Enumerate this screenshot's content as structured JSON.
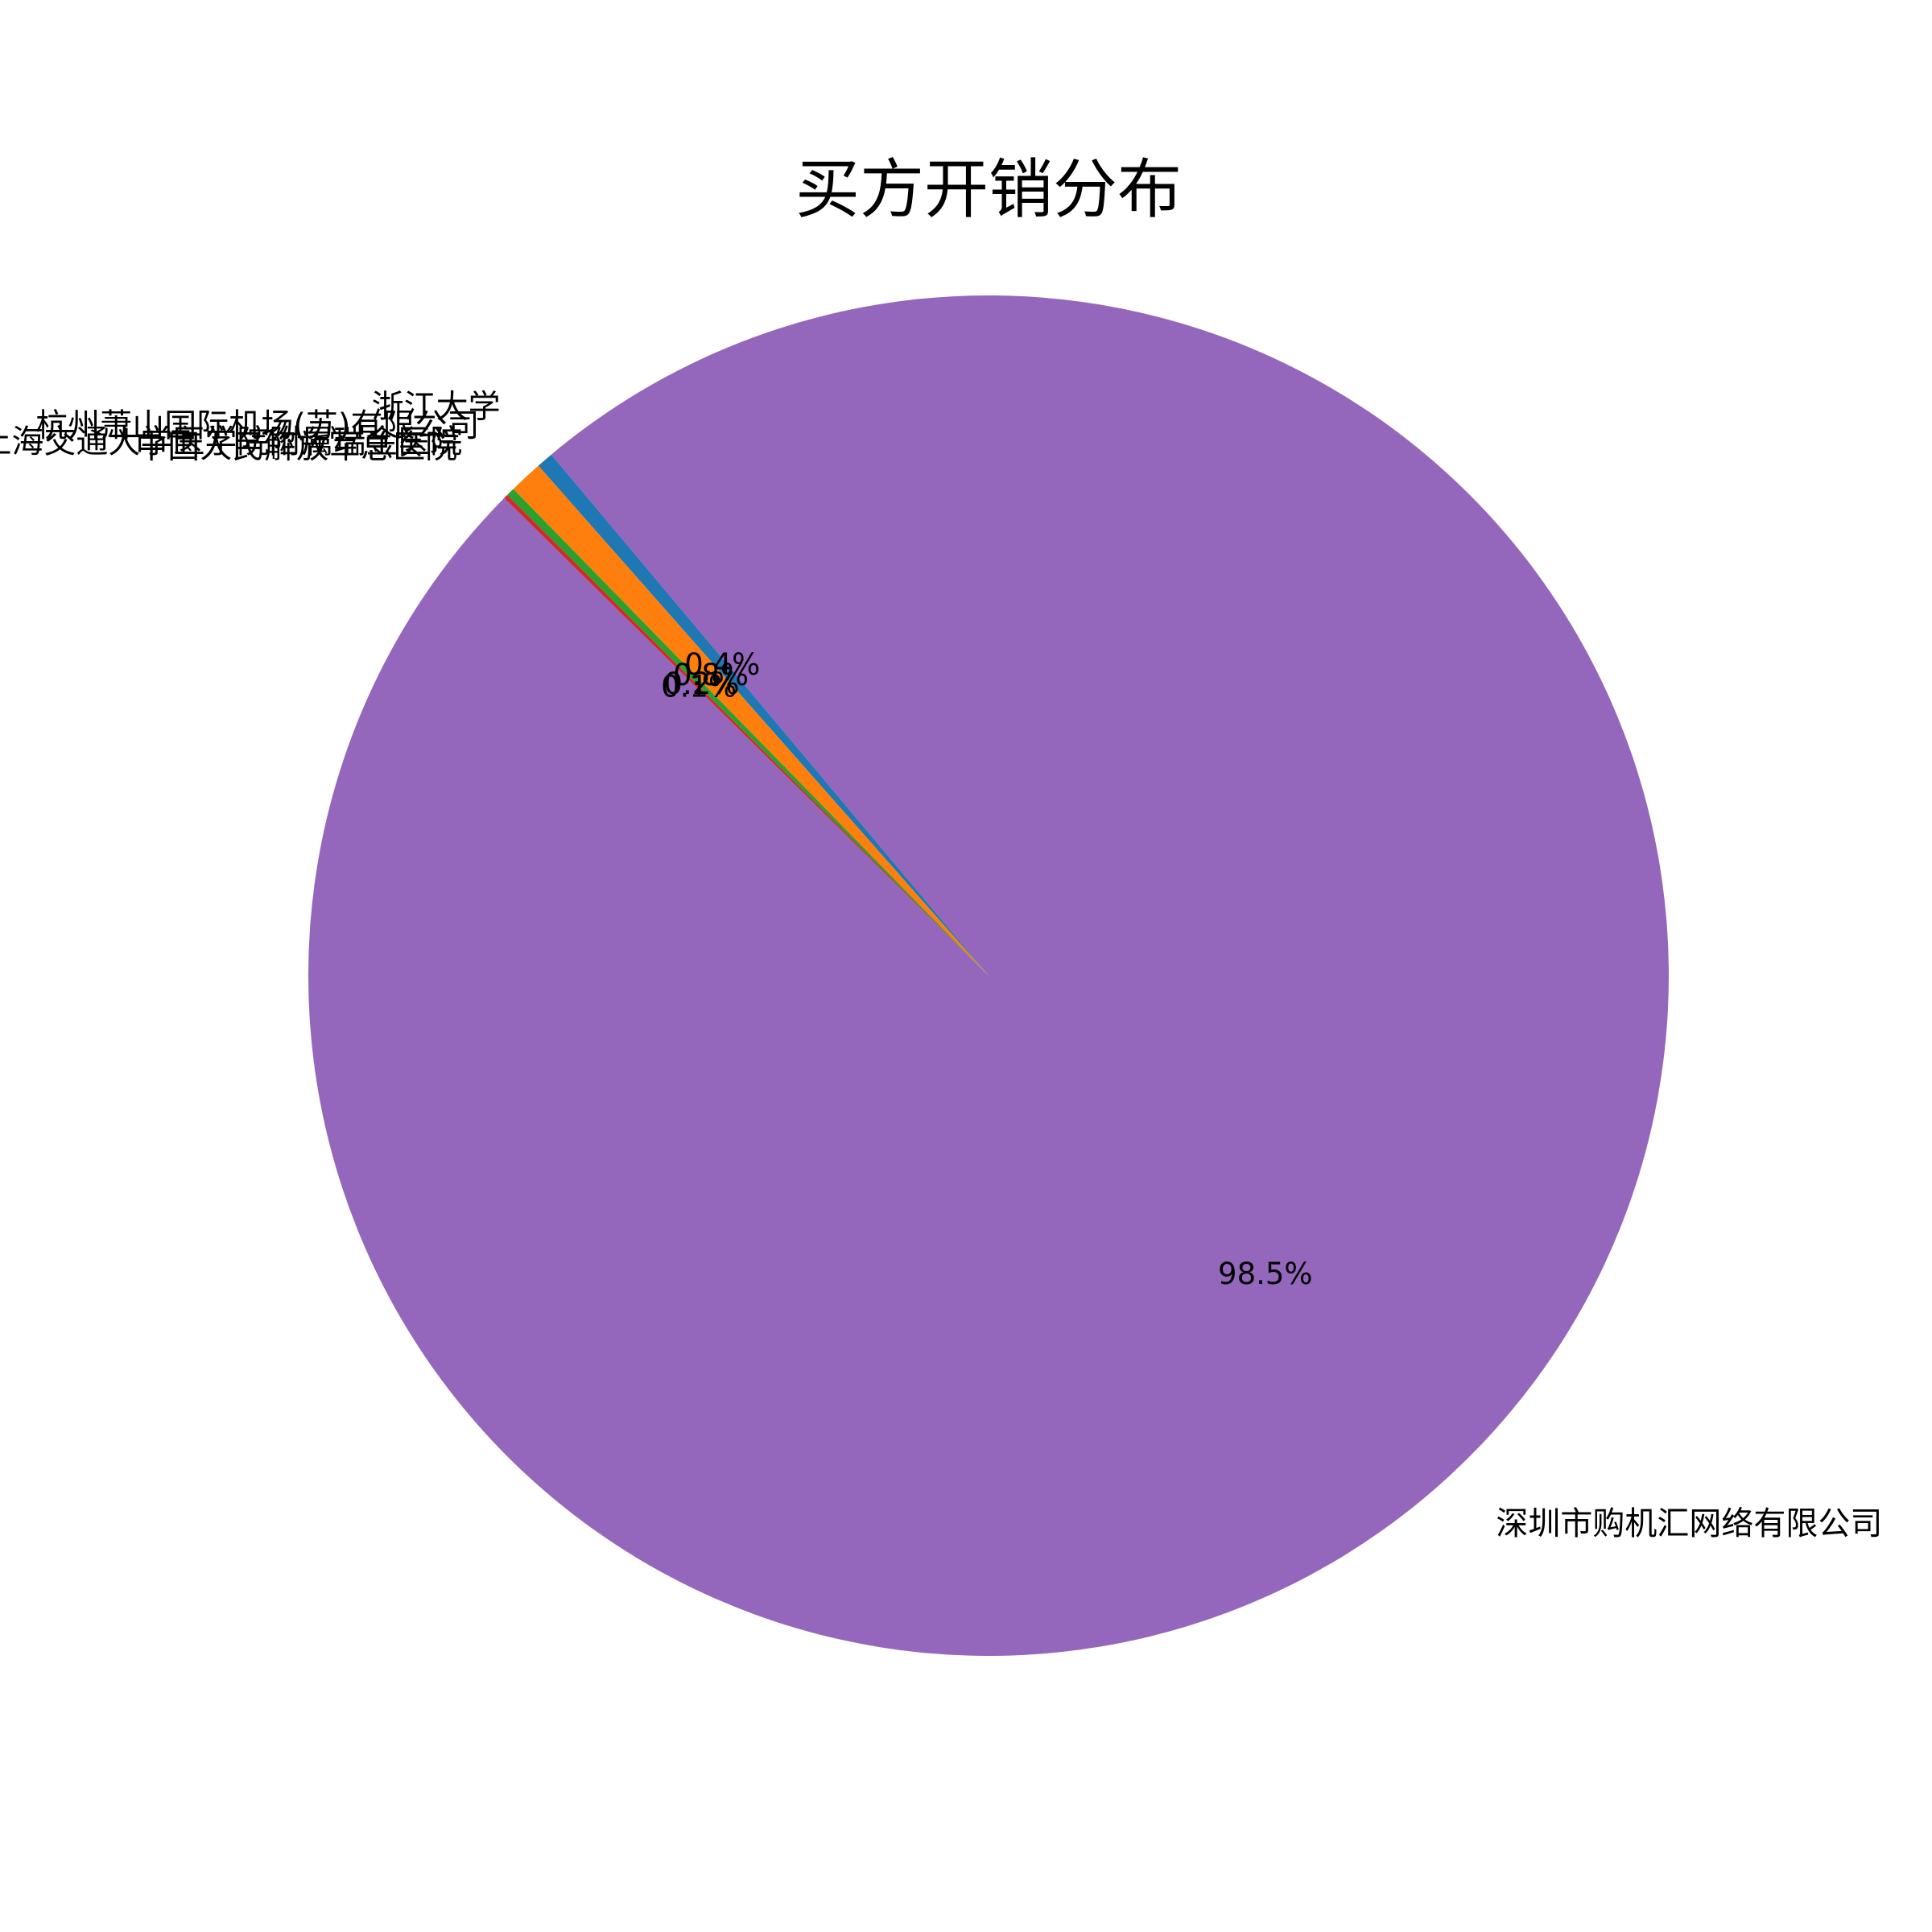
{
  "chart_data": {
    "type": "pie",
    "title": "买方开销分布",
    "start_angle_deg": 130,
    "counterclock": true,
    "slices": [
      {
        "label": "浙江大学",
        "value": 0.4,
        "pct_label": "0.4%",
        "color": "#1f77b4"
      },
      {
        "label": "杭州萧山国际机场(苏)有限公司",
        "value": 0.8,
        "pct_label": "0.8%",
        "color": "#ff7f0e"
      },
      {
        "label": "上海交通大学医学院附属瑞金医院",
        "value": 0.2,
        "pct_label": "0.2%",
        "color": "#2ca02c"
      },
      {
        "label": "中国人民解放军总医院",
        "value": 0.1,
        "pct_label": "0.1%",
        "color": "#d62728"
      },
      {
        "label": "深圳市购机汇网络有限公司",
        "value": 98.5,
        "pct_label": "98.5%",
        "color": "#9467bd"
      }
    ]
  }
}
